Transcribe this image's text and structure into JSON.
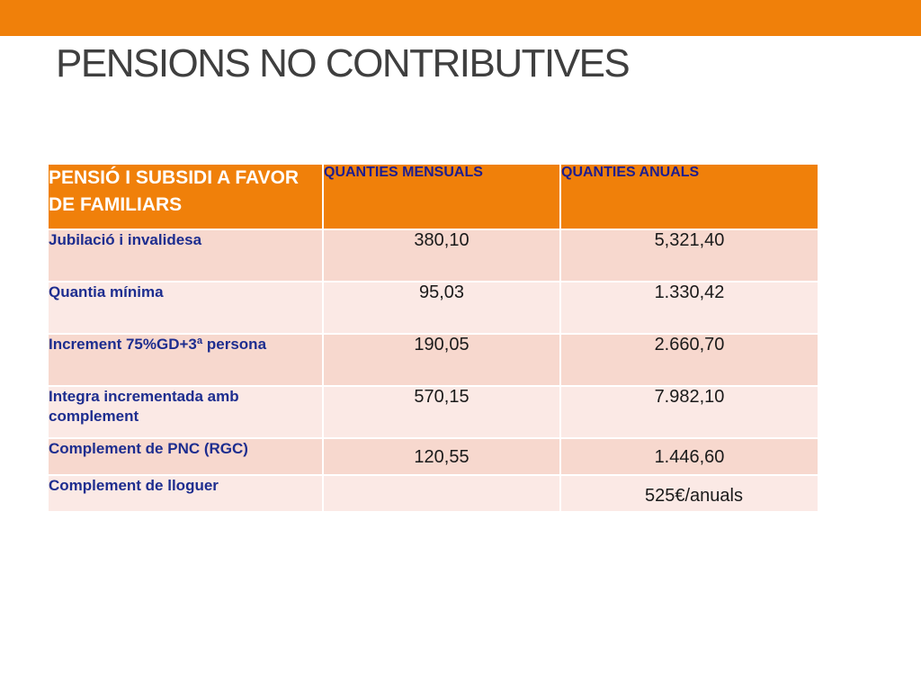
{
  "colors": {
    "accent": "#f0800a",
    "row_dark": "#f7d8ce",
    "row_light": "#fbe9e5",
    "label_text": "#1d2d8f",
    "title_text": "#3f3f3f"
  },
  "slide": {
    "title": "PENSIONS NO CONTRIBUTIVES"
  },
  "table": {
    "headers": [
      "PENSIÓ I SUBSIDI A FAVOR DE FAMILIARS",
      "QUANTIES MENSUALS",
      "QUANTIES ANUALS"
    ],
    "rows": [
      {
        "label": "Jubilació i invalidesa",
        "monthly": "380,10",
        "annual": "5,321,40"
      },
      {
        "label": "Quantia mínima",
        "monthly": "95,03",
        "annual": "1.330,42"
      },
      {
        "label": "Increment 75%GD+3ª persona",
        "monthly": "190,05",
        "annual": "2.660,70"
      },
      {
        "label": "Integra incrementada amb complement",
        "monthly": "570,15",
        "annual": "7.982,10"
      },
      {
        "label": "Complement de PNC (RGC)",
        "monthly": "120,55",
        "annual": "1.446,60"
      },
      {
        "label": "Complement de lloguer",
        "monthly": "",
        "annual": "525€/anuals"
      }
    ]
  }
}
